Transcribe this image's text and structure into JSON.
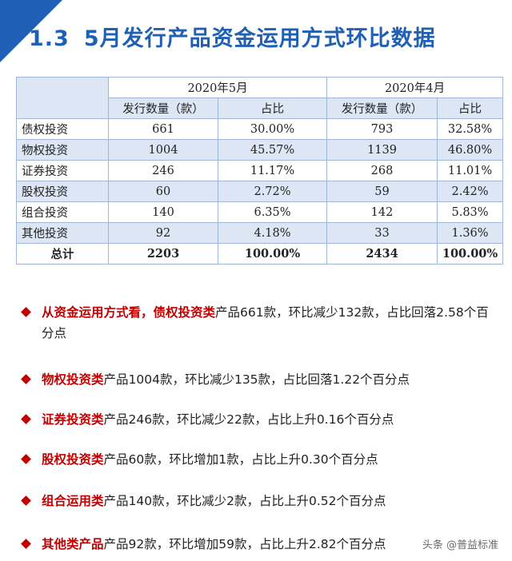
{
  "title": {
    "number": "1.3",
    "text": "5月发行产品资金运用方式环比数据"
  },
  "table": {
    "period_headers": [
      "2020年5月",
      "2020年4月"
    ],
    "sub_headers": [
      "发行数量（款）",
      "占比",
      "发行数量（款）",
      "占比"
    ],
    "rows": [
      {
        "label": "债权投资",
        "may_count": "661",
        "may_share": "30.00%",
        "apr_count": "793",
        "apr_share": "32.58%"
      },
      {
        "label": "物权投资",
        "may_count": "1004",
        "may_share": "45.57%",
        "apr_count": "1139",
        "apr_share": "46.80%"
      },
      {
        "label": "证券投资",
        "may_count": "246",
        "may_share": "11.17%",
        "apr_count": "268",
        "apr_share": "11.01%"
      },
      {
        "label": "股权投资",
        "may_count": "60",
        "may_share": "2.72%",
        "apr_count": "59",
        "apr_share": "2.42%"
      },
      {
        "label": "组合投资",
        "may_count": "140",
        "may_share": "6.35%",
        "apr_count": "142",
        "apr_share": "5.83%"
      },
      {
        "label": "其他投资",
        "may_count": "92",
        "may_share": "4.18%",
        "apr_count": "33",
        "apr_share": "1.36%"
      }
    ],
    "total": {
      "label": "总计",
      "may_count": "2203",
      "may_share": "100.00%",
      "apr_count": "2434",
      "apr_share": "100.00%"
    }
  },
  "bullets": [
    {
      "highlight": "从资金运用方式看，债权投资类",
      "text": "产品661款，环比减少132款，占比回落2.58个百分点"
    },
    {
      "highlight": "物权投资类",
      "text": "产品1004款，环比减少135款，占比回落1.22个百分点"
    },
    {
      "highlight": "证券投资类",
      "text": "产品246款，环比减少22款，占比上升0.16个百分点"
    },
    {
      "highlight": "股权投资类",
      "text": "产品60款，环比增加1款，占比上升0.30个百分点"
    },
    {
      "highlight": "组合运用类",
      "text": "产品140款，环比减少2款，占比上升0.52个百分点"
    },
    {
      "highlight": "其他类产品",
      "text": "产品92款，环比增加59款，占比上升2.82个百分点"
    }
  ],
  "watermark": "头条 @普益标准",
  "colors": {
    "accent": "#1f5fb4",
    "highlight": "#c00000",
    "table_fill": "#dce6f4"
  }
}
